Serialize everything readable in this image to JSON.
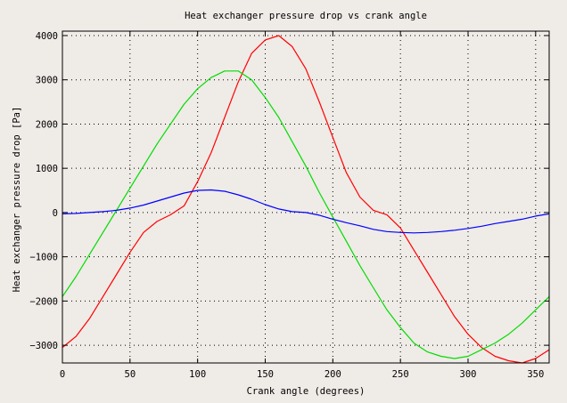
{
  "chart_data": {
    "type": "line",
    "title": "Heat exchanger pressure drop vs crank angle",
    "xlabel": "Crank angle (degrees)",
    "ylabel": "Heat exchanger pressure drop [Pa]",
    "xlim": [
      0,
      360
    ],
    "ylim": [
      -3400,
      4100
    ],
    "xticks": [
      0,
      50,
      100,
      150,
      200,
      250,
      300,
      350
    ],
    "yticks": [
      -3000,
      -2000,
      -1000,
      0,
      1000,
      2000,
      3000,
      4000
    ],
    "xtick_labels": [
      "0",
      "50",
      "100",
      "150",
      "200",
      "250",
      "300",
      "350"
    ],
    "ytick_labels": [
      "−3000",
      "−2000",
      "−1000",
      "0",
      "1000",
      "2000",
      "3000",
      "4000"
    ],
    "grid": true,
    "series": [
      {
        "color": "#ff0000",
        "x": [
          0,
          10,
          20,
          30,
          40,
          50,
          60,
          70,
          80,
          90,
          100,
          110,
          120,
          130,
          140,
          150,
          160,
          170,
          180,
          190,
          200,
          210,
          220,
          230,
          240,
          250,
          260,
          270,
          280,
          290,
          300,
          310,
          320,
          330,
          340,
          350,
          360
        ],
        "y": [
          -3050,
          -2800,
          -2400,
          -1900,
          -1400,
          -900,
          -450,
          -200,
          -50,
          150,
          700,
          1350,
          2150,
          2950,
          3600,
          3900,
          4000,
          3750,
          3250,
          2500,
          1700,
          900,
          350,
          50,
          -50,
          -350,
          -850,
          -1350,
          -1850,
          -2350,
          -2750,
          -3050,
          -3250,
          -3350,
          -3400,
          -3300,
          -3100
        ]
      },
      {
        "color": "#00dd00",
        "x": [
          0,
          10,
          20,
          30,
          40,
          50,
          60,
          70,
          80,
          90,
          100,
          110,
          120,
          130,
          140,
          150,
          160,
          170,
          180,
          190,
          200,
          210,
          220,
          230,
          240,
          250,
          260,
          270,
          280,
          290,
          300,
          310,
          320,
          330,
          340,
          350,
          360
        ],
        "y": [
          -1900,
          -1450,
          -950,
          -450,
          50,
          550,
          1050,
          1550,
          2000,
          2450,
          2800,
          3050,
          3200,
          3200,
          3000,
          2600,
          2150,
          1600,
          1050,
          450,
          -100,
          -650,
          -1200,
          -1700,
          -2200,
          -2600,
          -2950,
          -3150,
          -3250,
          -3300,
          -3250,
          -3100,
          -2950,
          -2750,
          -2500,
          -2200,
          -1900
        ]
      },
      {
        "color": "#0000ff",
        "x": [
          0,
          10,
          20,
          30,
          40,
          50,
          60,
          70,
          80,
          90,
          100,
          110,
          120,
          130,
          140,
          150,
          160,
          170,
          180,
          190,
          200,
          210,
          220,
          230,
          240,
          250,
          260,
          270,
          280,
          290,
          300,
          310,
          320,
          330,
          340,
          350,
          360
        ],
        "y": [
          -30,
          -20,
          0,
          20,
          50,
          100,
          170,
          260,
          350,
          440,
          500,
          510,
          480,
          400,
          300,
          180,
          80,
          20,
          0,
          -60,
          -150,
          -230,
          -300,
          -380,
          -430,
          -450,
          -460,
          -450,
          -430,
          -400,
          -360,
          -310,
          -250,
          -200,
          -150,
          -80,
          -30
        ]
      }
    ]
  }
}
